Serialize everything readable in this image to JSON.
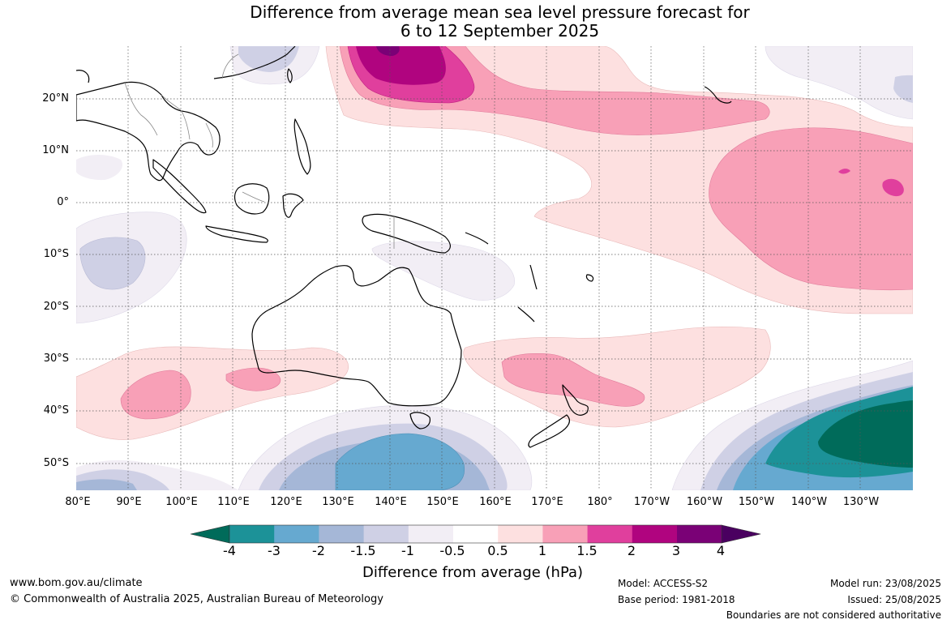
{
  "title": {
    "line1": "Difference from average mean sea level pressure forecast for",
    "line2": "6 to 12 September 2025"
  },
  "map": {
    "region": "Australia and Western Pacific",
    "lat_labels": [
      "20°N",
      "10°N",
      "0°",
      "10°S",
      "20°S",
      "30°S",
      "40°S",
      "50°S"
    ],
    "lon_labels": [
      "80°E",
      "90°E",
      "100°E",
      "110°E",
      "120°E",
      "130°E",
      "140°E",
      "150°E",
      "160°E",
      "170°E",
      "180°",
      "170°W",
      "160°W",
      "150°W",
      "140°W",
      "130°W"
    ]
  },
  "legend": {
    "title": "Difference from average (hPa)",
    "ticks": [
      "-4",
      "-3",
      "-2",
      "-1.5",
      "-1",
      "-0.5",
      "0.5",
      "1",
      "1.5",
      "2",
      "3",
      "4"
    ],
    "colors": [
      "#006b5a",
      "#1c9298",
      "#66a9d0",
      "#a5b7d7",
      "#cfd0e5",
      "#f2eef5",
      "#ffffff",
      "#fde0e0",
      "#f8a0b7",
      "#e03f9d",
      "#b0047f",
      "#7a0176",
      "#4a0060"
    ]
  },
  "footer": {
    "website": "www.bom.gov.au/climate",
    "copyright": "© Commonwealth of Australia 2025, Australian Bureau of Meteorology",
    "model": "Model: ACCESS-S2",
    "base_period": "Base period: 1981-2018",
    "model_run": "Model run: 23/08/2025",
    "issued": "Issued: 25/08/2025",
    "disclaimer": "Boundaries are not considered authoritative"
  }
}
